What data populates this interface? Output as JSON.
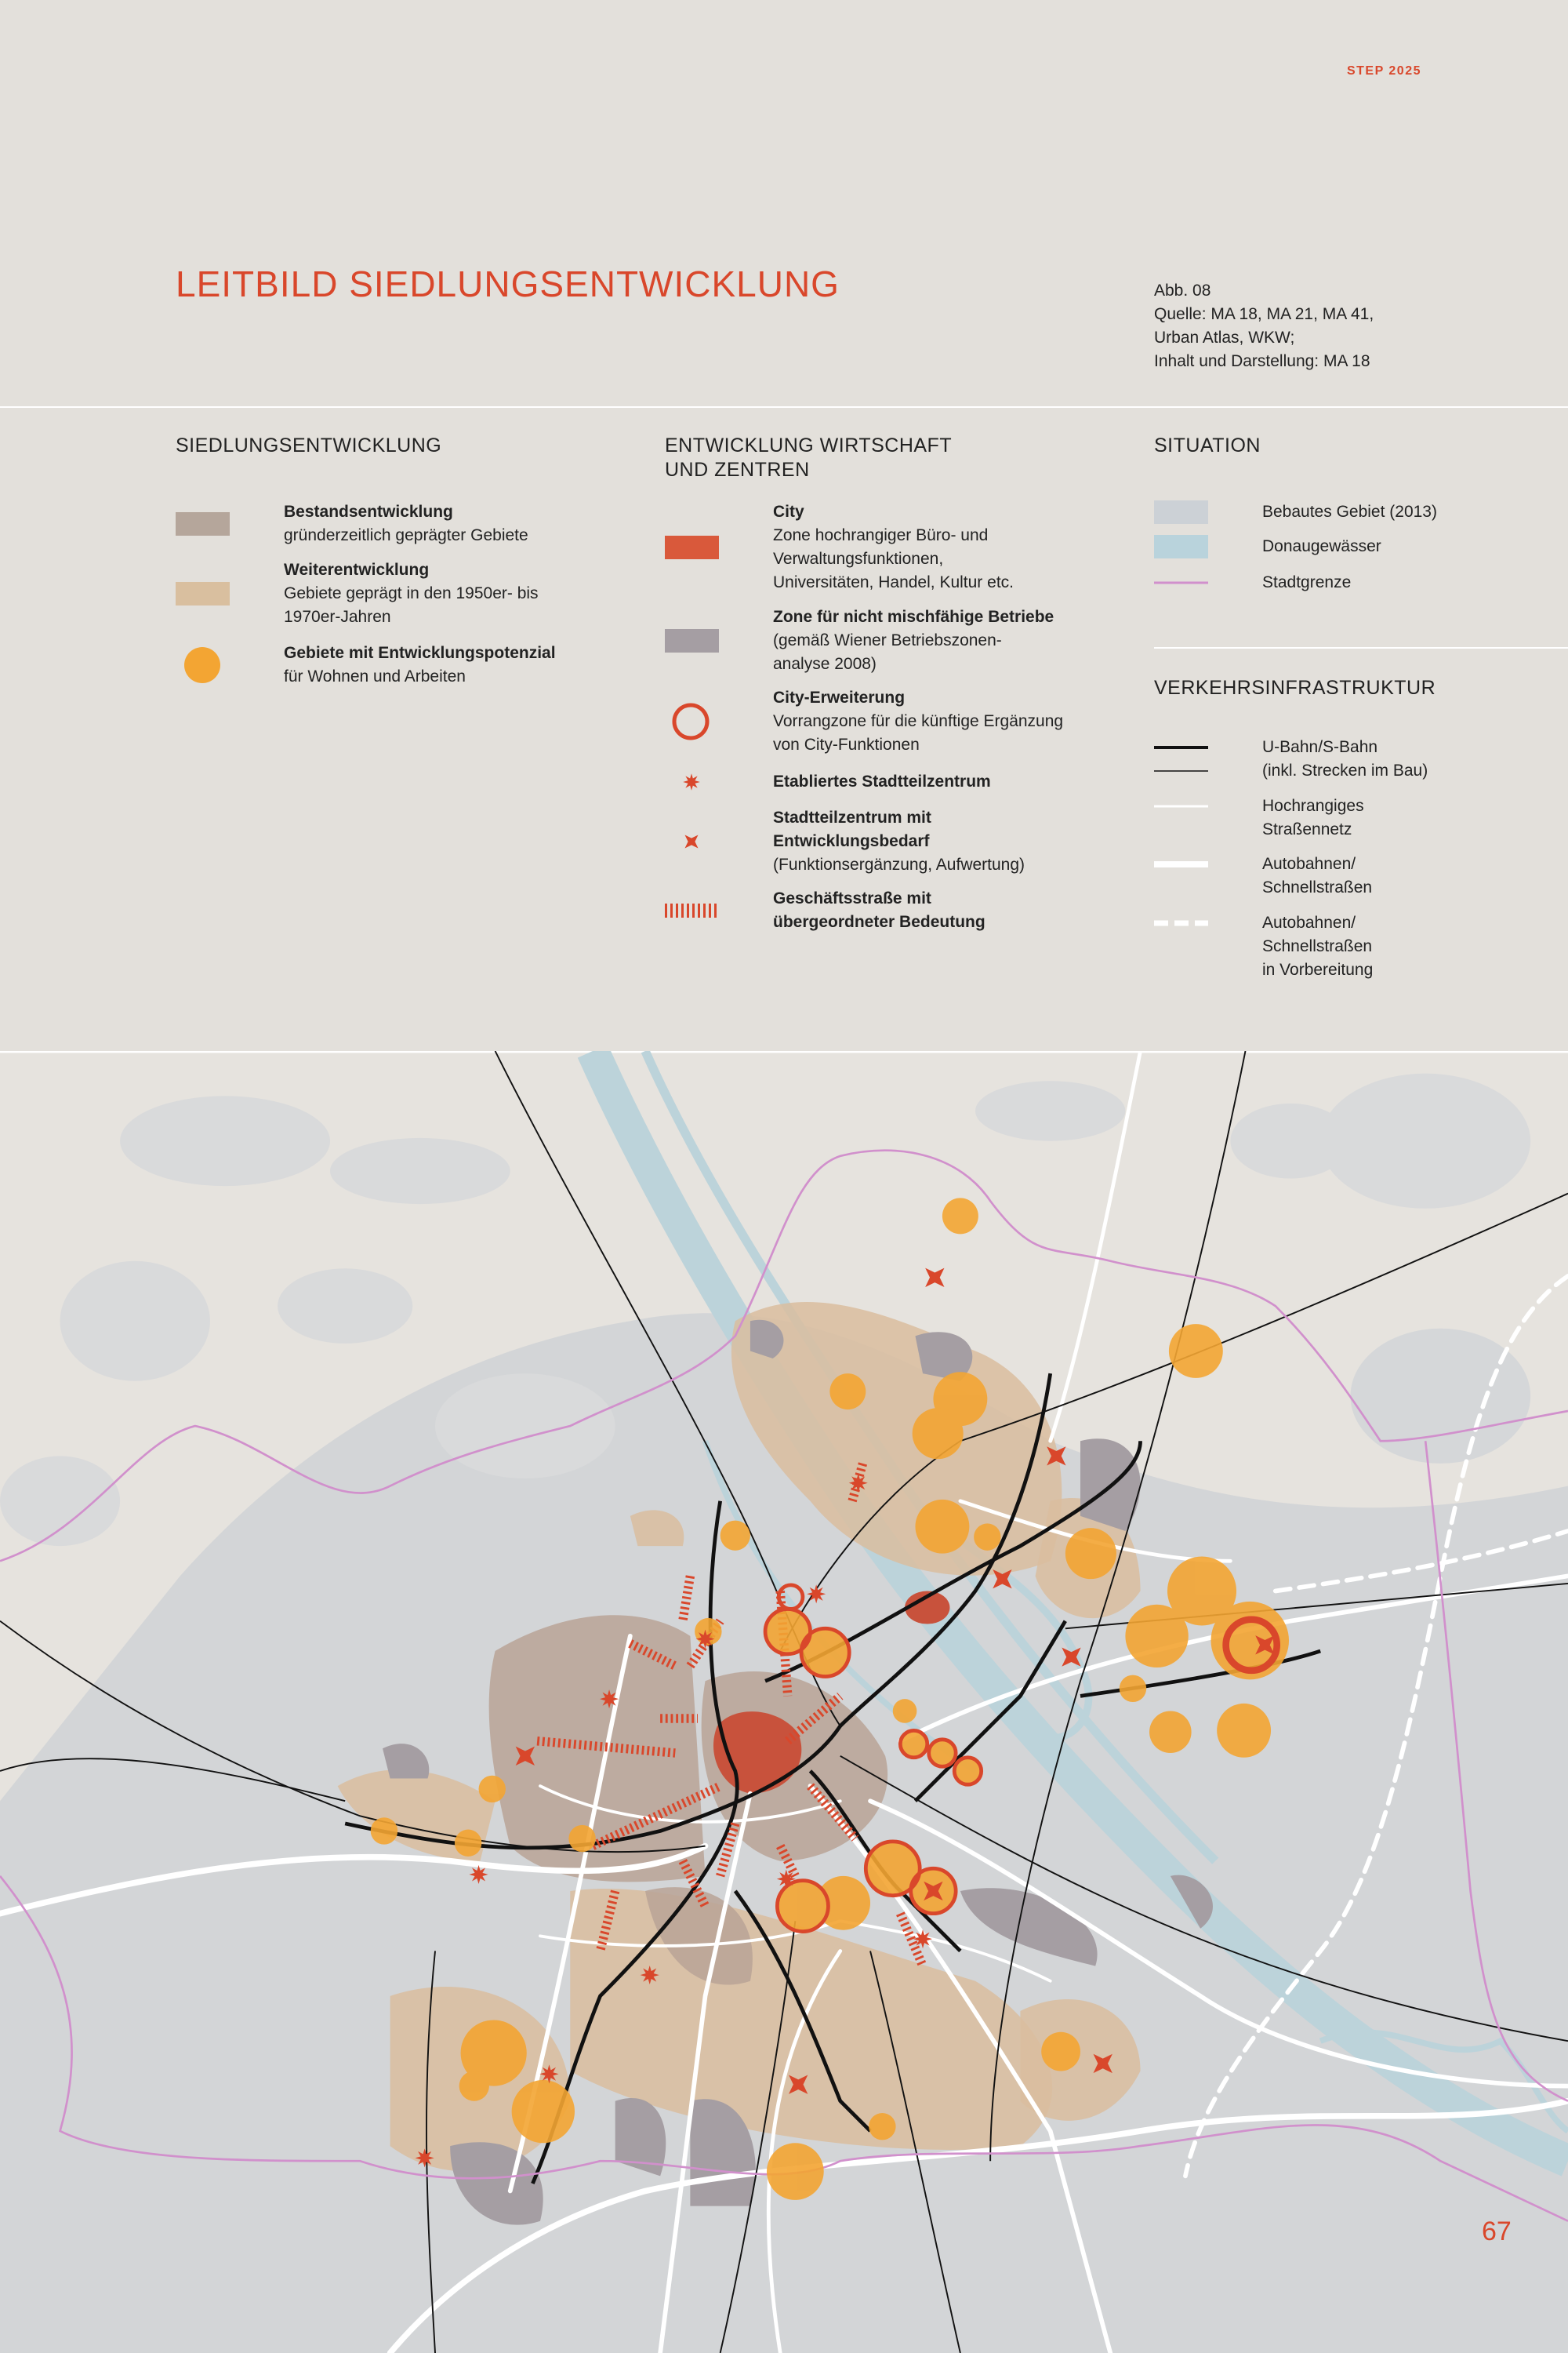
{
  "header": {
    "label": "STEP 2025",
    "title": "LEITBILD SIEDLUNGSENTWICKLUNG",
    "source": [
      "Abb. 08",
      "Quelle: MA 18, MA 21, MA 41,",
      "Urban Atlas, WKW;",
      "Inhalt und Darstellung: MA 18"
    ]
  },
  "legend": {
    "columns": [
      {
        "heading": [
          "SIEDLUNGSENTWICKLUNG"
        ],
        "items": [
          {
            "title": [
              "Bestandsentwicklung"
            ],
            "text": [
              "gründerzeitlich geprägter Gebiete"
            ]
          },
          {
            "title": [
              "Weiterentwicklung"
            ],
            "text": [
              "Gebiete geprägt in den 1950er- bis",
              "1970er-Jahren"
            ]
          },
          {
            "title": [
              "Gebiete mit Entwicklungspotenzial"
            ],
            "text": [
              "für Wohnen und Arbeiten"
            ]
          }
        ]
      },
      {
        "heading": [
          "ENTWICKLUNG WIRTSCHAFT",
          "UND ZENTREN"
        ],
        "items": [
          {
            "title": [
              "City"
            ],
            "text": [
              "Zone hochrangiger Büro- und",
              "Verwaltungsfunktionen,",
              "Universitäten, Handel, Kultur etc."
            ]
          },
          {
            "title": [
              "Zone für nicht mischfähige Betriebe"
            ],
            "text": [
              "(gemäß Wiener Betriebszonen-",
              "analyse 2008)"
            ]
          },
          {
            "title": [
              "City-Erweiterung"
            ],
            "text": [
              "Vorrangzone für die künftige Ergänzung",
              "von City-Funktionen"
            ]
          },
          {
            "title": [
              "Etabliertes Stadtteilzentrum"
            ]
          },
          {
            "title": [
              "Stadtteilzentrum mit",
              "Entwicklungsbedarf"
            ],
            "text": [
              "(Funktionsergänzung, Aufwertung)"
            ]
          },
          {
            "title": [
              "Geschäftsstraße mit",
              "übergeordneter Bedeutung"
            ]
          }
        ]
      },
      {
        "heading": [
          "SITUATION"
        ],
        "items": [
          {
            "text": [
              "Bebautes Gebiet (2013)"
            ]
          },
          {
            "text": [
              "Donaugewässer"
            ]
          },
          {
            "text": [
              "Stadtgrenze"
            ]
          }
        ]
      },
      {
        "heading": [
          "VERKEHRSINFRASTRUKTUR"
        ],
        "items": [
          {
            "text": [
              "U-Bahn/S-Bahn",
              "(inkl. Strecken im Bau)"
            ]
          },
          {
            "text": [
              "Hochrangiges",
              "Straßennetz"
            ]
          },
          {
            "text": [
              "Autobahnen/",
              "Schnellstraßen"
            ]
          },
          {
            "text": [
              "Autobahnen/",
              "Schnellstraßen",
              "in Vorbereitung"
            ]
          }
        ]
      }
    ]
  },
  "page_number": "67"
}
